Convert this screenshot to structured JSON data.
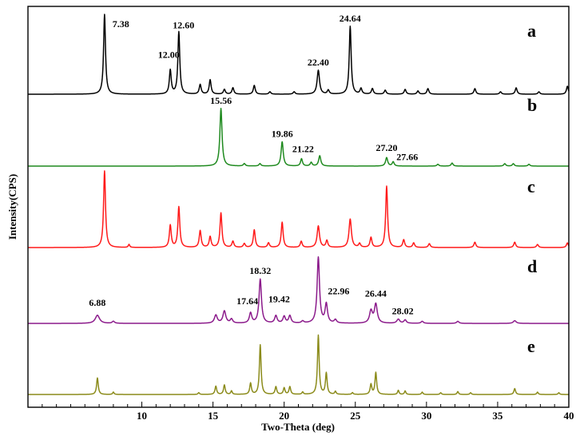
{
  "chart_data": {
    "type": "line",
    "xlabel": "Two-Theta (deg)",
    "ylabel": "Intensity(CPS)",
    "xlim": [
      2,
      40
    ],
    "xticks": [
      10,
      15,
      20,
      25,
      30,
      35,
      40
    ],
    "grid": false,
    "series": [
      {
        "name": "a",
        "color": "#000000",
        "peaks": [
          {
            "x": 7.38,
            "h": 1.0,
            "w": 0.08
          },
          {
            "x": 12.0,
            "h": 0.3,
            "w": 0.08
          },
          {
            "x": 12.6,
            "h": 0.78,
            "w": 0.08
          },
          {
            "x": 14.1,
            "h": 0.12,
            "w": 0.08
          },
          {
            "x": 14.8,
            "h": 0.18,
            "w": 0.08
          },
          {
            "x": 15.8,
            "h": 0.06,
            "w": 0.08
          },
          {
            "x": 16.4,
            "h": 0.08,
            "w": 0.08
          },
          {
            "x": 17.9,
            "h": 0.11,
            "w": 0.08
          },
          {
            "x": 19.0,
            "h": 0.03,
            "w": 0.08
          },
          {
            "x": 20.7,
            "h": 0.03,
            "w": 0.08
          },
          {
            "x": 22.4,
            "h": 0.3,
            "w": 0.1
          },
          {
            "x": 23.1,
            "h": 0.05,
            "w": 0.08
          },
          {
            "x": 24.64,
            "h": 0.85,
            "w": 0.08
          },
          {
            "x": 25.4,
            "h": 0.07,
            "w": 0.08
          },
          {
            "x": 26.2,
            "h": 0.07,
            "w": 0.08
          },
          {
            "x": 27.1,
            "h": 0.05,
            "w": 0.08
          },
          {
            "x": 28.5,
            "h": 0.06,
            "w": 0.08
          },
          {
            "x": 29.4,
            "h": 0.04,
            "w": 0.08
          },
          {
            "x": 30.1,
            "h": 0.07,
            "w": 0.08
          },
          {
            "x": 33.4,
            "h": 0.07,
            "w": 0.08
          },
          {
            "x": 35.2,
            "h": 0.03,
            "w": 0.08
          },
          {
            "x": 36.3,
            "h": 0.08,
            "w": 0.08
          },
          {
            "x": 37.9,
            "h": 0.03,
            "w": 0.08
          },
          {
            "x": 39.9,
            "h": 0.1,
            "w": 0.08
          }
        ]
      },
      {
        "name": "b",
        "color": "#1f8a1f",
        "peaks": [
          {
            "x": 15.56,
            "h": 0.95,
            "w": 0.09
          },
          {
            "x": 17.2,
            "h": 0.04,
            "w": 0.08
          },
          {
            "x": 18.3,
            "h": 0.04,
            "w": 0.08
          },
          {
            "x": 19.86,
            "h": 0.4,
            "w": 0.09
          },
          {
            "x": 21.22,
            "h": 0.12,
            "w": 0.08
          },
          {
            "x": 21.9,
            "h": 0.06,
            "w": 0.08
          },
          {
            "x": 22.5,
            "h": 0.17,
            "w": 0.09
          },
          {
            "x": 27.2,
            "h": 0.14,
            "w": 0.09
          },
          {
            "x": 27.66,
            "h": 0.07,
            "w": 0.08
          },
          {
            "x": 30.8,
            "h": 0.03,
            "w": 0.08
          },
          {
            "x": 31.8,
            "h": 0.05,
            "w": 0.08
          },
          {
            "x": 35.5,
            "h": 0.04,
            "w": 0.08
          },
          {
            "x": 36.1,
            "h": 0.04,
            "w": 0.08
          },
          {
            "x": 37.2,
            "h": 0.03,
            "w": 0.08
          }
        ]
      },
      {
        "name": "c",
        "color": "#ff1a1a",
        "peaks": [
          {
            "x": 7.38,
            "h": 1.0,
            "w": 0.08
          },
          {
            "x": 9.1,
            "h": 0.04,
            "w": 0.06
          },
          {
            "x": 12.0,
            "h": 0.29,
            "w": 0.08
          },
          {
            "x": 12.6,
            "h": 0.53,
            "w": 0.08
          },
          {
            "x": 14.1,
            "h": 0.22,
            "w": 0.08
          },
          {
            "x": 14.8,
            "h": 0.14,
            "w": 0.08
          },
          {
            "x": 15.56,
            "h": 0.45,
            "w": 0.08
          },
          {
            "x": 16.4,
            "h": 0.08,
            "w": 0.08
          },
          {
            "x": 17.2,
            "h": 0.05,
            "w": 0.08
          },
          {
            "x": 17.9,
            "h": 0.23,
            "w": 0.08
          },
          {
            "x": 18.9,
            "h": 0.06,
            "w": 0.08
          },
          {
            "x": 19.86,
            "h": 0.33,
            "w": 0.08
          },
          {
            "x": 21.2,
            "h": 0.08,
            "w": 0.08
          },
          {
            "x": 22.4,
            "h": 0.28,
            "w": 0.1
          },
          {
            "x": 23.0,
            "h": 0.09,
            "w": 0.08
          },
          {
            "x": 24.64,
            "h": 0.37,
            "w": 0.1
          },
          {
            "x": 25.3,
            "h": 0.05,
            "w": 0.08
          },
          {
            "x": 26.1,
            "h": 0.13,
            "w": 0.08
          },
          {
            "x": 27.2,
            "h": 0.8,
            "w": 0.08
          },
          {
            "x": 28.4,
            "h": 0.1,
            "w": 0.08
          },
          {
            "x": 29.1,
            "h": 0.06,
            "w": 0.08
          },
          {
            "x": 30.2,
            "h": 0.05,
            "w": 0.08
          },
          {
            "x": 33.4,
            "h": 0.07,
            "w": 0.08
          },
          {
            "x": 36.2,
            "h": 0.07,
            "w": 0.08
          },
          {
            "x": 37.8,
            "h": 0.04,
            "w": 0.08
          },
          {
            "x": 39.9,
            "h": 0.06,
            "w": 0.08
          }
        ]
      },
      {
        "name": "d",
        "color": "#8b1a8b",
        "peaks": [
          {
            "x": 6.88,
            "h": 0.12,
            "w": 0.18
          },
          {
            "x": 8.0,
            "h": 0.03,
            "w": 0.1
          },
          {
            "x": 15.2,
            "h": 0.12,
            "w": 0.12
          },
          {
            "x": 15.8,
            "h": 0.18,
            "w": 0.12
          },
          {
            "x": 16.3,
            "h": 0.06,
            "w": 0.1
          },
          {
            "x": 17.64,
            "h": 0.15,
            "w": 0.1
          },
          {
            "x": 18.32,
            "h": 0.65,
            "w": 0.1
          },
          {
            "x": 19.42,
            "h": 0.11,
            "w": 0.1
          },
          {
            "x": 20.0,
            "h": 0.1,
            "w": 0.1
          },
          {
            "x": 20.4,
            "h": 0.11,
            "w": 0.1
          },
          {
            "x": 21.3,
            "h": 0.03,
            "w": 0.1
          },
          {
            "x": 22.4,
            "h": 0.97,
            "w": 0.1
          },
          {
            "x": 22.96,
            "h": 0.28,
            "w": 0.1
          },
          {
            "x": 23.6,
            "h": 0.05,
            "w": 0.1
          },
          {
            "x": 26.1,
            "h": 0.18,
            "w": 0.12
          },
          {
            "x": 26.44,
            "h": 0.28,
            "w": 0.12
          },
          {
            "x": 28.02,
            "h": 0.06,
            "w": 0.12
          },
          {
            "x": 28.5,
            "h": 0.05,
            "w": 0.1
          },
          {
            "x": 29.7,
            "h": 0.03,
            "w": 0.1
          },
          {
            "x": 32.2,
            "h": 0.03,
            "w": 0.1
          },
          {
            "x": 36.2,
            "h": 0.04,
            "w": 0.12
          }
        ]
      },
      {
        "name": "e",
        "color": "#8b8b1a",
        "peaks": [
          {
            "x": 6.88,
            "h": 0.28,
            "w": 0.07
          },
          {
            "x": 8.0,
            "h": 0.04,
            "w": 0.06
          },
          {
            "x": 14.0,
            "h": 0.03,
            "w": 0.06
          },
          {
            "x": 15.2,
            "h": 0.14,
            "w": 0.07
          },
          {
            "x": 15.8,
            "h": 0.16,
            "w": 0.07
          },
          {
            "x": 16.3,
            "h": 0.06,
            "w": 0.06
          },
          {
            "x": 17.64,
            "h": 0.19,
            "w": 0.07
          },
          {
            "x": 18.32,
            "h": 0.84,
            "w": 0.07
          },
          {
            "x": 19.42,
            "h": 0.13,
            "w": 0.07
          },
          {
            "x": 20.0,
            "h": 0.11,
            "w": 0.07
          },
          {
            "x": 20.4,
            "h": 0.13,
            "w": 0.07
          },
          {
            "x": 21.3,
            "h": 0.04,
            "w": 0.06
          },
          {
            "x": 22.4,
            "h": 1.0,
            "w": 0.07
          },
          {
            "x": 22.96,
            "h": 0.36,
            "w": 0.07
          },
          {
            "x": 23.6,
            "h": 0.05,
            "w": 0.06
          },
          {
            "x": 24.8,
            "h": 0.03,
            "w": 0.06
          },
          {
            "x": 26.1,
            "h": 0.17,
            "w": 0.07
          },
          {
            "x": 26.44,
            "h": 0.37,
            "w": 0.07
          },
          {
            "x": 28.02,
            "h": 0.07,
            "w": 0.06
          },
          {
            "x": 28.5,
            "h": 0.06,
            "w": 0.06
          },
          {
            "x": 29.7,
            "h": 0.04,
            "w": 0.06
          },
          {
            "x": 31.0,
            "h": 0.03,
            "w": 0.06
          },
          {
            "x": 32.2,
            "h": 0.05,
            "w": 0.06
          },
          {
            "x": 33.1,
            "h": 0.03,
            "w": 0.06
          },
          {
            "x": 36.2,
            "h": 0.1,
            "w": 0.07
          },
          {
            "x": 37.8,
            "h": 0.04,
            "w": 0.06
          },
          {
            "x": 39.3,
            "h": 0.03,
            "w": 0.06
          }
        ]
      }
    ],
    "annotations": [
      {
        "series": "a",
        "x": 7.38,
        "text": "7.38"
      },
      {
        "series": "a",
        "x": 12.0,
        "text": "12.00"
      },
      {
        "series": "a",
        "x": 12.6,
        "text": "12.60"
      },
      {
        "series": "a",
        "x": 22.4,
        "text": "22.40"
      },
      {
        "series": "a",
        "x": 24.64,
        "text": "24.64"
      },
      {
        "series": "b",
        "x": 15.56,
        "text": "15.56"
      },
      {
        "series": "b",
        "x": 19.86,
        "text": "19.86"
      },
      {
        "series": "b",
        "x": 21.22,
        "text": "21.22"
      },
      {
        "series": "b",
        "x": 27.2,
        "text": "27.20"
      },
      {
        "series": "b",
        "x": 27.66,
        "text": "27.66"
      },
      {
        "series": "d",
        "x": 6.88,
        "text": "6.88"
      },
      {
        "series": "d",
        "x": 17.64,
        "text": "17.64"
      },
      {
        "series": "d",
        "x": 18.32,
        "text": "18.32"
      },
      {
        "series": "d",
        "x": 19.42,
        "text": "19.42"
      },
      {
        "series": "d",
        "x": 22.96,
        "text": "22.96"
      },
      {
        "series": "d",
        "x": 26.44,
        "text": "26.44"
      },
      {
        "series": "d",
        "x": 28.02,
        "text": "28.02"
      }
    ]
  }
}
